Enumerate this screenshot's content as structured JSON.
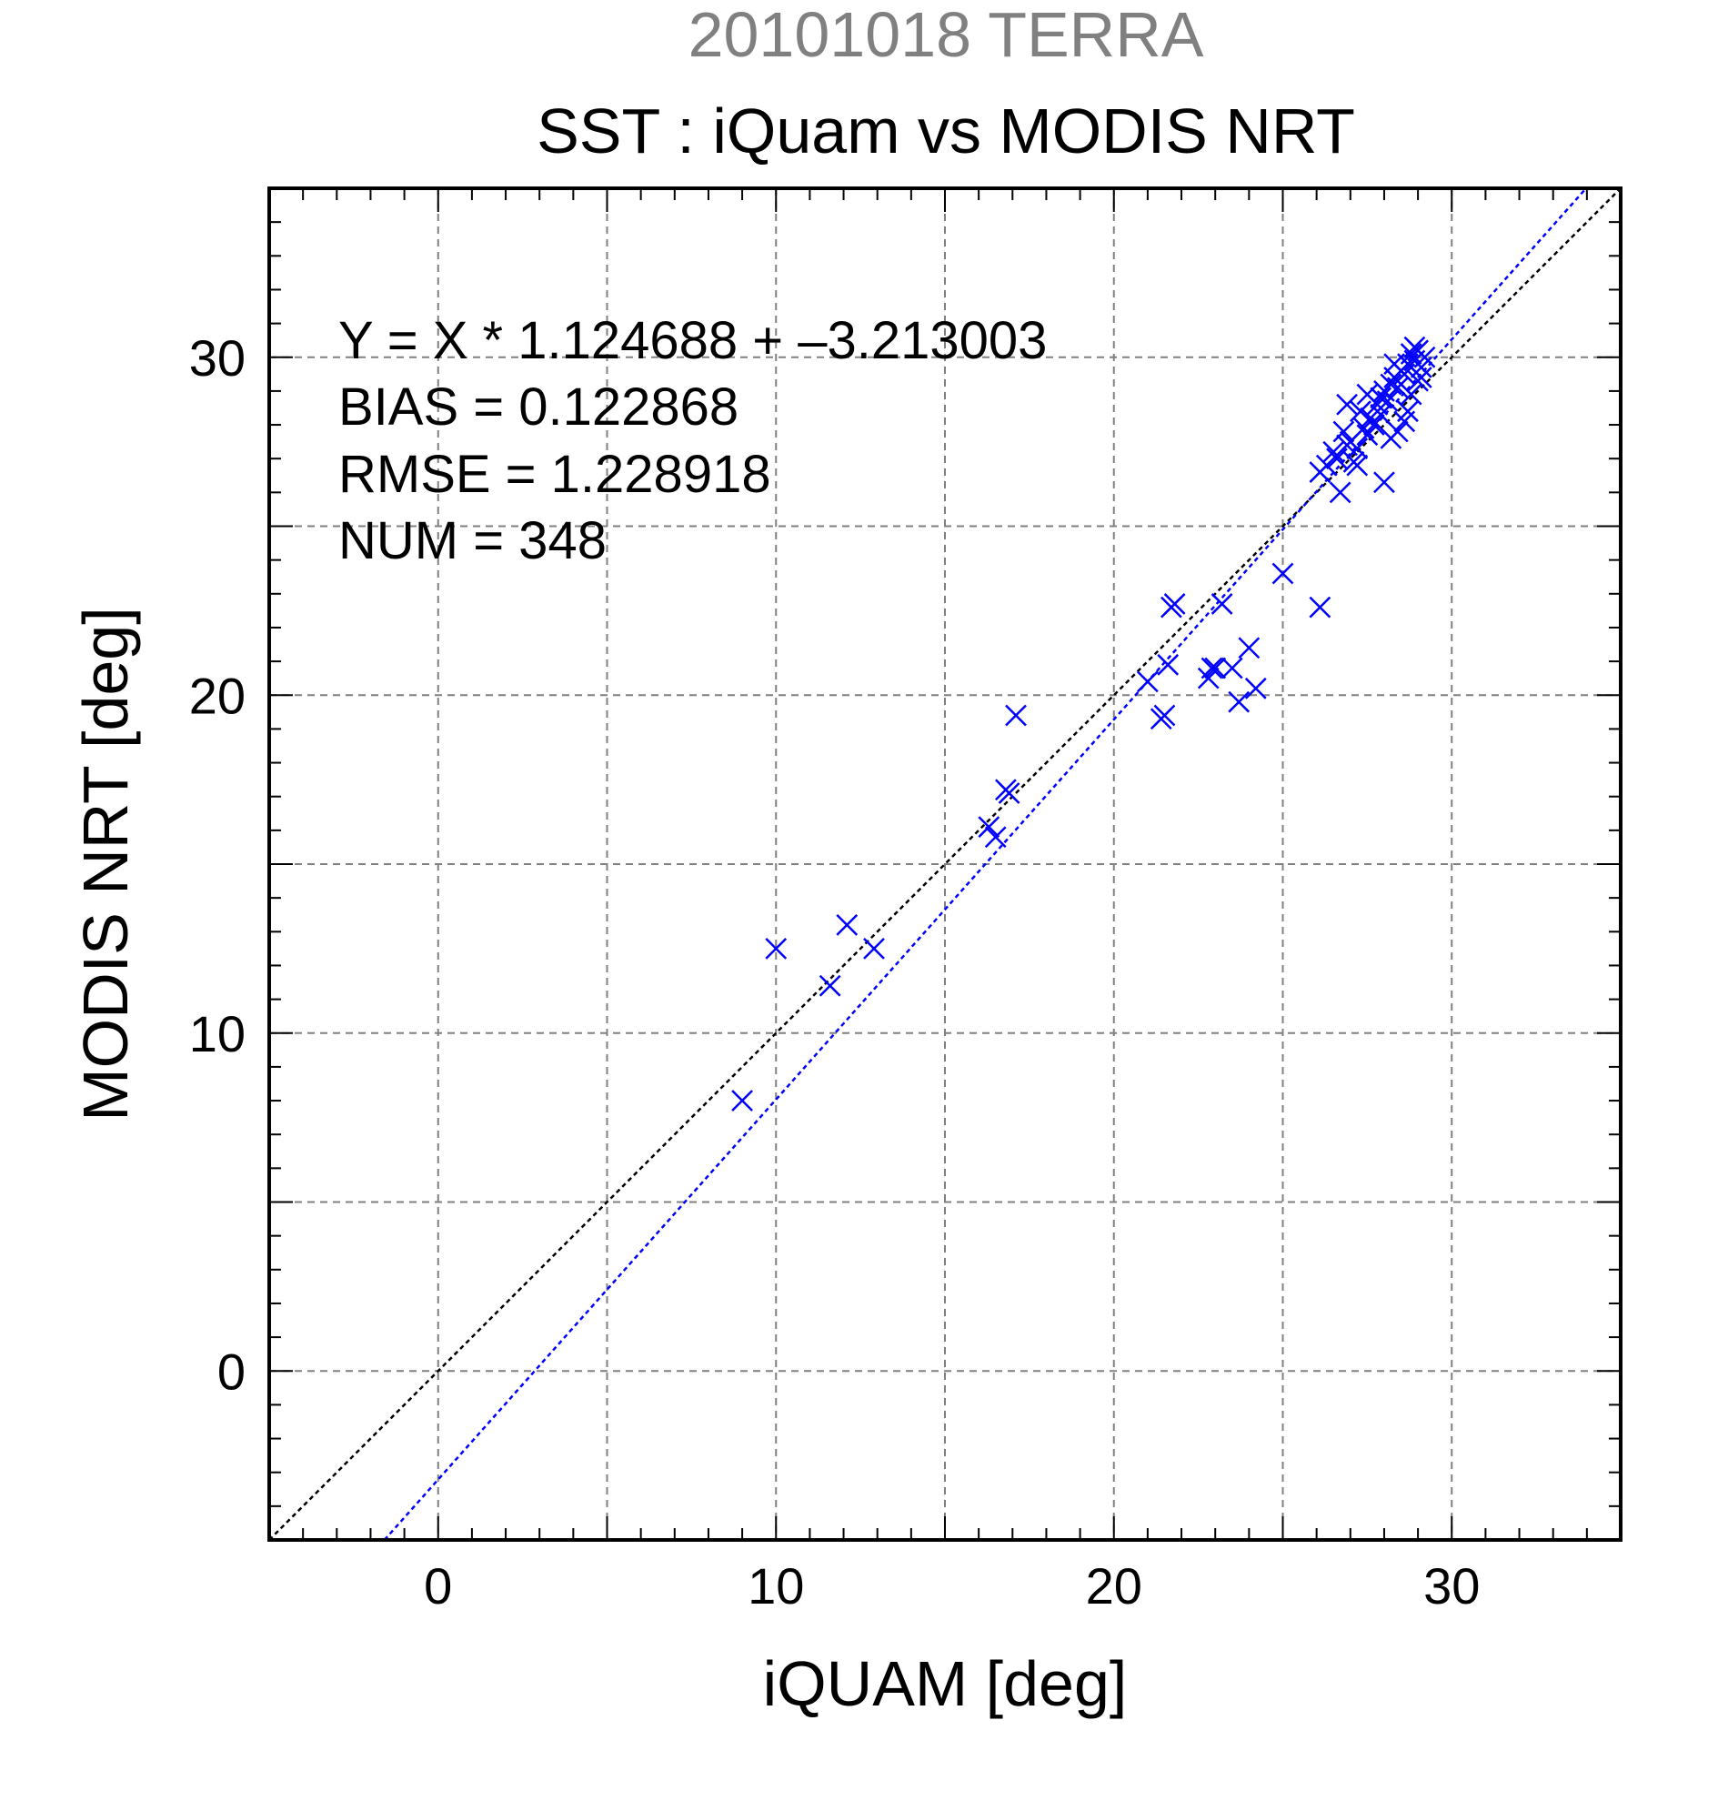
{
  "chart_data": {
    "type": "scatter",
    "title": "20101018 TERRA",
    "subtitle": "SST : iQuam vs MODIS NRT",
    "xlabel": "iQUAM [deg]",
    "ylabel": "MODIS NRT [deg]",
    "xlim": [
      -5,
      35
    ],
    "ylim": [
      -5,
      35
    ],
    "x_ticks": [
      0,
      10,
      20,
      30
    ],
    "y_ticks": [
      0,
      10,
      20,
      30
    ],
    "x_tick_labels": [
      "0",
      "10",
      "20",
      "30"
    ],
    "y_tick_labels": [
      "0",
      "10",
      "20",
      "30"
    ],
    "grid": true,
    "marker": "x",
    "colors": {
      "title": "#808080",
      "points": "#0000ff",
      "regression_line": "#0000ff",
      "identity_line": "#000000",
      "grid": "#808080"
    },
    "annotations": [
      "Y = X * 1.124688 + –3.213003",
      "BIAS = 0.122868",
      "RMSE = 1.228918",
      "NUM = 348"
    ],
    "regression": {
      "slope": 1.124688,
      "intercept": -3.213003
    },
    "identity_line": {
      "slope": 1,
      "intercept": 0
    },
    "series": [
      {
        "x": [
          9.0,
          10.0,
          11.6,
          12.1,
          12.9,
          16.3,
          16.5,
          16.8,
          16.9,
          17.1,
          21.0,
          21.4,
          21.5,
          21.6,
          21.7,
          21.8,
          22.9,
          22.8,
          23.0,
          23.2,
          23.5,
          23.7,
          24.0,
          24.2,
          25.0,
          26.1,
          26.1,
          26.3,
          26.5,
          26.7,
          26.8,
          26.9,
          27.0,
          27.1,
          27.2,
          27.3,
          27.4,
          27.5,
          27.6,
          27.7,
          27.8,
          27.9,
          28.0,
          28.1,
          28.2,
          28.3,
          28.4,
          28.5,
          28.6,
          28.7,
          28.8,
          28.9,
          29.0,
          29.1,
          29.2,
          26.9,
          27.5,
          28.2,
          28.6,
          29.0,
          26.6,
          27.2,
          27.9,
          28.4,
          28.8,
          29.1,
          28.0,
          28.7,
          28.3,
          28.9
        ],
        "y": [
          8.0,
          12.5,
          11.4,
          13.2,
          12.5,
          16.1,
          15.8,
          17.2,
          17.1,
          19.4,
          20.4,
          19.3,
          19.4,
          20.9,
          22.6,
          22.7,
          20.8,
          20.5,
          20.8,
          22.7,
          20.8,
          19.8,
          21.4,
          20.2,
          23.6,
          26.6,
          22.6,
          26.8,
          27.2,
          26.0,
          27.8,
          27.4,
          27.5,
          26.9,
          27.3,
          28.4,
          27.9,
          27.7,
          28.2,
          28.0,
          28.6,
          28.8,
          29.0,
          28.7,
          29.2,
          29.4,
          29.1,
          29.6,
          29.5,
          29.8,
          30.1,
          29.9,
          30.2,
          29.7,
          30.0,
          28.6,
          28.9,
          27.6,
          28.1,
          29.3,
          27.0,
          26.8,
          28.3,
          27.8,
          28.9,
          29.4,
          26.3,
          28.4,
          29.8,
          30.3
        ],
        "marker": "x"
      }
    ]
  }
}
